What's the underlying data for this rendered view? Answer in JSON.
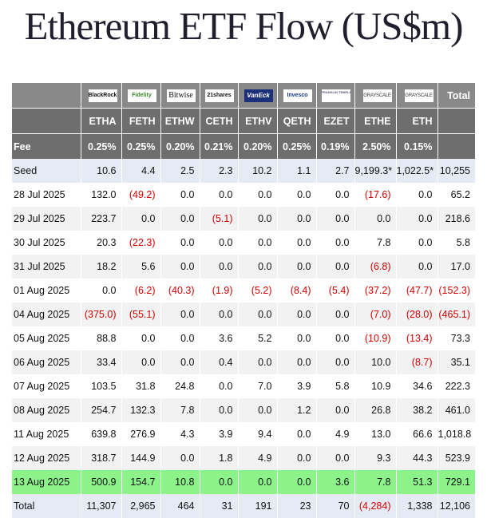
{
  "title": "Ethereum ETF Flow (US$m)",
  "issuers": [
    {
      "logo": "BlackRock",
      "ticker": "ETHA",
      "fee": "0.25%"
    },
    {
      "logo": "Fidelity",
      "ticker": "FETH",
      "fee": "0.25%"
    },
    {
      "logo": "Bitwise",
      "ticker": "ETHW",
      "fee": "0.20%"
    },
    {
      "logo": "21shares",
      "ticker": "CETH",
      "fee": "0.21%"
    },
    {
      "logo": "VanEck",
      "ticker": "ETHV",
      "fee": "0.20%"
    },
    {
      "logo": "Invesco",
      "ticker": "QETH",
      "fee": "0.25%"
    },
    {
      "logo": "FRANKLIN TEMPLETON",
      "ticker": "EZET",
      "fee": "0.19%"
    },
    {
      "logo": "GRAYSCALE",
      "ticker": "ETHE",
      "fee": "2.50%"
    },
    {
      "logo": "GRAYSCALE",
      "ticker": "ETH",
      "fee": "0.15%"
    }
  ],
  "total_header": "Total",
  "fee_label": "Fee",
  "fee_total": "",
  "rows": [
    {
      "label": "Seed",
      "style": "seed",
      "values": [
        "10.6",
        "4.4",
        "2.5",
        "2.3",
        "10.2",
        "1.1",
        "2.7",
        "9,199.3*",
        "1,022.5*",
        "10,255"
      ]
    },
    {
      "label": "28 Jul 2025",
      "style": "plain",
      "values": [
        "132.0",
        "(49.2)",
        "0.0",
        "0.0",
        "0.0",
        "0.0",
        "0.0",
        "(17.6)",
        "0.0",
        "65.2"
      ]
    },
    {
      "label": "29 Jul 2025",
      "style": "alt",
      "values": [
        "223.7",
        "0.0",
        "0.0",
        "(5.1)",
        "0.0",
        "0.0",
        "0.0",
        "0.0",
        "0.0",
        "218.6"
      ]
    },
    {
      "label": "30 Jul 2025",
      "style": "plain",
      "values": [
        "20.3",
        "(22.3)",
        "0.0",
        "0.0",
        "0.0",
        "0.0",
        "0.0",
        "7.8",
        "0.0",
        "5.8"
      ]
    },
    {
      "label": "31 Jul 2025",
      "style": "alt",
      "values": [
        "18.2",
        "5.6",
        "0.0",
        "0.0",
        "0.0",
        "0.0",
        "0.0",
        "(6.8)",
        "0.0",
        "17.0"
      ]
    },
    {
      "label": "01 Aug 2025",
      "style": "plain",
      "values": [
        "0.0",
        "(6.2)",
        "(40.3)",
        "(1.9)",
        "(5.2)",
        "(8.4)",
        "(5.4)",
        "(37.2)",
        "(47.7)",
        "(152.3)"
      ]
    },
    {
      "label": "04 Aug 2025",
      "style": "alt",
      "values": [
        "(375.0)",
        "(55.1)",
        "0.0",
        "0.0",
        "0.0",
        "0.0",
        "0.0",
        "(7.0)",
        "(28.0)",
        "(465.1)"
      ]
    },
    {
      "label": "05 Aug 2025",
      "style": "plain",
      "values": [
        "88.8",
        "0.0",
        "0.0",
        "3.6",
        "5.2",
        "0.0",
        "0.0",
        "(10.9)",
        "(13.4)",
        "73.3"
      ]
    },
    {
      "label": "06 Aug 2025",
      "style": "alt",
      "values": [
        "33.4",
        "0.0",
        "0.0",
        "0.4",
        "0.0",
        "0.0",
        "0.0",
        "10.0",
        "(8.7)",
        "35.1"
      ]
    },
    {
      "label": "07 Aug 2025",
      "style": "plain",
      "values": [
        "103.5",
        "31.8",
        "24.8",
        "0.0",
        "7.0",
        "3.9",
        "5.8",
        "10.9",
        "34.6",
        "222.3"
      ]
    },
    {
      "label": "08 Aug 2025",
      "style": "alt",
      "values": [
        "254.7",
        "132.3",
        "7.8",
        "0.0",
        "0.0",
        "1.2",
        "0.0",
        "26.8",
        "38.2",
        "461.0"
      ]
    },
    {
      "label": "11 Aug 2025",
      "style": "plain",
      "values": [
        "639.8",
        "276.9",
        "4.3",
        "3.9",
        "9.4",
        "0.0",
        "4.9",
        "13.0",
        "66.6",
        "1,018.8"
      ]
    },
    {
      "label": "12 Aug 2025",
      "style": "alt",
      "values": [
        "318.7",
        "144.9",
        "0.0",
        "1.8",
        "4.9",
        "0.0",
        "0.0",
        "9.3",
        "44.3",
        "523.9"
      ]
    },
    {
      "label": "13 Aug 2025",
      "style": "hl",
      "values": [
        "500.9",
        "154.7",
        "10.8",
        "0.0",
        "0.0",
        "0.0",
        "3.6",
        "7.8",
        "51.3",
        "729.1"
      ]
    },
    {
      "label": "Total",
      "style": "tot",
      "values": [
        "11,307",
        "2,965",
        "464",
        "31",
        "191",
        "23",
        "70",
        "(4,284)",
        "1,338",
        "12,106"
      ]
    }
  ],
  "colors": {
    "header_dark": "#6e6e6e",
    "header_logo": "#898989",
    "negative": "#d40000",
    "highlight": "#8cf28a",
    "seed_total": "#e5ebf5",
    "alt": "#f2f2f2"
  }
}
